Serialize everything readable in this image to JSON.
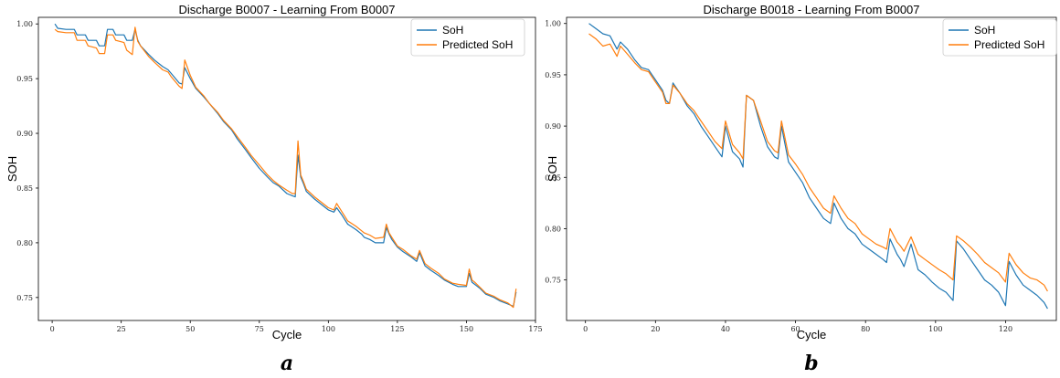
{
  "chart_data": [
    {
      "type": "line",
      "title": "Discharge B0007 - Learning From B0007",
      "xlabel": "Cycle",
      "ylabel": "SOH",
      "panel_label": "a",
      "xlim": [
        -5,
        175
      ],
      "ylim": [
        0.729,
        1.006
      ],
      "xticks": [
        0,
        25,
        50,
        75,
        100,
        125,
        150,
        175
      ],
      "xtick_labels": [
        "0",
        "25",
        "50",
        "75",
        "100",
        "125",
        "150",
        "175"
      ],
      "yticks": [
        0.75,
        0.8,
        0.85,
        0.9,
        0.95,
        1.0
      ],
      "ytick_labels": [
        "0.75",
        "0.80",
        "0.85",
        "0.90",
        "0.95",
        "1.00"
      ],
      "legend_position": "top-right",
      "series": [
        {
          "name": "SoH",
          "color": "#1f77b4",
          "x": [
            1,
            2,
            5,
            8,
            9,
            12,
            13,
            16,
            17,
            19,
            20,
            21,
            22,
            23,
            26,
            27,
            29,
            30,
            31,
            32,
            35,
            37,
            40,
            42,
            43,
            46,
            47,
            48,
            50,
            52,
            55,
            57,
            60,
            62,
            65,
            67,
            70,
            72,
            75,
            78,
            80,
            82,
            85,
            87,
            88,
            89,
            90,
            91,
            92,
            95,
            100,
            102,
            103,
            105,
            107,
            110,
            112,
            113,
            115,
            117,
            120,
            121,
            122,
            123,
            125,
            127,
            130,
            132,
            133,
            135,
            137,
            140,
            142,
            145,
            147,
            150,
            151,
            152,
            153,
            155,
            157,
            160,
            162,
            165,
            167,
            168
          ],
          "y": [
            1.0,
            0.996,
            0.995,
            0.995,
            0.99,
            0.99,
            0.985,
            0.985,
            0.98,
            0.98,
            0.995,
            0.995,
            0.995,
            0.99,
            0.99,
            0.985,
            0.985,
            0.995,
            0.985,
            0.98,
            0.972,
            0.967,
            0.961,
            0.958,
            0.955,
            0.946,
            0.945,
            0.96,
            0.95,
            0.941,
            0.933,
            0.927,
            0.918,
            0.911,
            0.903,
            0.895,
            0.885,
            0.878,
            0.868,
            0.86,
            0.855,
            0.852,
            0.845,
            0.843,
            0.842,
            0.88,
            0.86,
            0.854,
            0.847,
            0.84,
            0.83,
            0.828,
            0.832,
            0.825,
            0.817,
            0.812,
            0.808,
            0.805,
            0.803,
            0.8,
            0.8,
            0.814,
            0.808,
            0.803,
            0.796,
            0.792,
            0.787,
            0.783,
            0.791,
            0.779,
            0.775,
            0.77,
            0.766,
            0.762,
            0.76,
            0.76,
            0.772,
            0.764,
            0.762,
            0.758,
            0.753,
            0.75,
            0.747,
            0.744,
            0.742,
            0.755
          ]
        },
        {
          "name": "Predicted SoH",
          "color": "#ff7f0e",
          "x": [
            1,
            2,
            5,
            8,
            9,
            12,
            13,
            16,
            17,
            19,
            20,
            21,
            22,
            23,
            26,
            27,
            29,
            30,
            31,
            32,
            35,
            37,
            40,
            42,
            43,
            46,
            47,
            48,
            50,
            52,
            55,
            57,
            60,
            62,
            65,
            67,
            70,
            72,
            75,
            78,
            80,
            82,
            85,
            87,
            88,
            89,
            90,
            91,
            92,
            95,
            100,
            102,
            103,
            105,
            107,
            110,
            112,
            113,
            115,
            117,
            120,
            121,
            122,
            123,
            125,
            127,
            130,
            132,
            133,
            135,
            137,
            140,
            142,
            145,
            147,
            150,
            151,
            152,
            153,
            155,
            157,
            160,
            162,
            165,
            167,
            168
          ],
          "y": [
            0.995,
            0.993,
            0.992,
            0.992,
            0.985,
            0.985,
            0.98,
            0.978,
            0.973,
            0.973,
            0.99,
            0.99,
            0.99,
            0.985,
            0.983,
            0.976,
            0.972,
            0.997,
            0.984,
            0.98,
            0.97,
            0.965,
            0.958,
            0.956,
            0.952,
            0.943,
            0.941,
            0.967,
            0.953,
            0.942,
            0.934,
            0.927,
            0.919,
            0.912,
            0.904,
            0.897,
            0.887,
            0.88,
            0.871,
            0.862,
            0.857,
            0.853,
            0.848,
            0.845,
            0.845,
            0.893,
            0.862,
            0.856,
            0.849,
            0.842,
            0.832,
            0.83,
            0.836,
            0.828,
            0.82,
            0.815,
            0.811,
            0.809,
            0.807,
            0.804,
            0.805,
            0.817,
            0.809,
            0.805,
            0.797,
            0.794,
            0.788,
            0.785,
            0.793,
            0.781,
            0.777,
            0.772,
            0.767,
            0.763,
            0.762,
            0.761,
            0.776,
            0.766,
            0.764,
            0.759,
            0.754,
            0.751,
            0.748,
            0.745,
            0.741,
            0.758
          ]
        }
      ]
    },
    {
      "type": "line",
      "title": "Discharge B0018 - Learning From B0007",
      "xlabel": "Cycle",
      "ylabel": "SOH",
      "panel_label": "b",
      "xlim": [
        -5.4,
        134.5
      ],
      "ylim": [
        0.7105,
        1.006
      ],
      "xticks": [
        0,
        20,
        40,
        60,
        80,
        100,
        120
      ],
      "xtick_labels": [
        "0",
        "20",
        "40",
        "60",
        "80",
        "100",
        "120"
      ],
      "yticks": [
        0.75,
        0.8,
        0.85,
        0.9,
        0.95,
        1.0
      ],
      "ytick_labels": [
        "0.75",
        "0.80",
        "0.85",
        "0.90",
        "0.95",
        "1.00"
      ],
      "legend_position": "top-right",
      "series": [
        {
          "name": "SoH",
          "color": "#1f77b4",
          "x": [
            1,
            3,
            5,
            7,
            9,
            10,
            12,
            14,
            16,
            18,
            20,
            22,
            23,
            24,
            25,
            27,
            29,
            31,
            33,
            35,
            37,
            39,
            40,
            42,
            44,
            45,
            46,
            48,
            50,
            52,
            54,
            55,
            56,
            58,
            60,
            62,
            64,
            66,
            68,
            70,
            71,
            73,
            75,
            77,
            79,
            81,
            83,
            85,
            86,
            87,
            89,
            90,
            91,
            93,
            95,
            97,
            99,
            101,
            103,
            105,
            106,
            108,
            110,
            112,
            114,
            116,
            118,
            120,
            121,
            123,
            125,
            127,
            129,
            131,
            132
          ],
          "y": [
            1.0,
            0.995,
            0.99,
            0.988,
            0.975,
            0.982,
            0.975,
            0.965,
            0.957,
            0.955,
            0.945,
            0.935,
            0.925,
            0.922,
            0.942,
            0.932,
            0.92,
            0.912,
            0.9,
            0.89,
            0.88,
            0.87,
            0.9,
            0.875,
            0.868,
            0.86,
            0.93,
            0.925,
            0.9,
            0.88,
            0.87,
            0.868,
            0.9,
            0.865,
            0.855,
            0.845,
            0.83,
            0.82,
            0.81,
            0.805,
            0.825,
            0.81,
            0.8,
            0.795,
            0.785,
            0.78,
            0.775,
            0.77,
            0.767,
            0.79,
            0.775,
            0.77,
            0.763,
            0.785,
            0.76,
            0.755,
            0.748,
            0.742,
            0.738,
            0.73,
            0.788,
            0.78,
            0.77,
            0.76,
            0.75,
            0.745,
            0.738,
            0.725,
            0.768,
            0.755,
            0.745,
            0.74,
            0.735,
            0.728,
            0.722
          ]
        },
        {
          "name": "Predicted SoH",
          "color": "#ff7f0e",
          "x": [
            1,
            3,
            5,
            7,
            9,
            10,
            12,
            14,
            16,
            18,
            20,
            22,
            23,
            24,
            25,
            27,
            29,
            31,
            33,
            35,
            37,
            39,
            40,
            42,
            44,
            45,
            46,
            48,
            50,
            52,
            54,
            55,
            56,
            58,
            60,
            62,
            64,
            66,
            68,
            70,
            71,
            73,
            75,
            77,
            79,
            81,
            83,
            85,
            86,
            87,
            89,
            90,
            91,
            93,
            95,
            97,
            99,
            101,
            103,
            105,
            106,
            108,
            110,
            112,
            114,
            116,
            118,
            120,
            121,
            123,
            125,
            127,
            129,
            131,
            132
          ],
          "y": [
            0.99,
            0.985,
            0.978,
            0.98,
            0.968,
            0.978,
            0.97,
            0.962,
            0.955,
            0.953,
            0.943,
            0.933,
            0.922,
            0.922,
            0.94,
            0.932,
            0.922,
            0.915,
            0.905,
            0.895,
            0.885,
            0.878,
            0.905,
            0.882,
            0.874,
            0.868,
            0.93,
            0.925,
            0.905,
            0.885,
            0.876,
            0.874,
            0.905,
            0.872,
            0.863,
            0.853,
            0.84,
            0.83,
            0.82,
            0.815,
            0.832,
            0.82,
            0.81,
            0.805,
            0.795,
            0.79,
            0.785,
            0.782,
            0.78,
            0.8,
            0.787,
            0.783,
            0.778,
            0.792,
            0.775,
            0.77,
            0.765,
            0.76,
            0.756,
            0.75,
            0.793,
            0.788,
            0.782,
            0.775,
            0.767,
            0.762,
            0.757,
            0.748,
            0.776,
            0.765,
            0.757,
            0.752,
            0.75,
            0.745,
            0.739
          ]
        }
      ]
    }
  ]
}
